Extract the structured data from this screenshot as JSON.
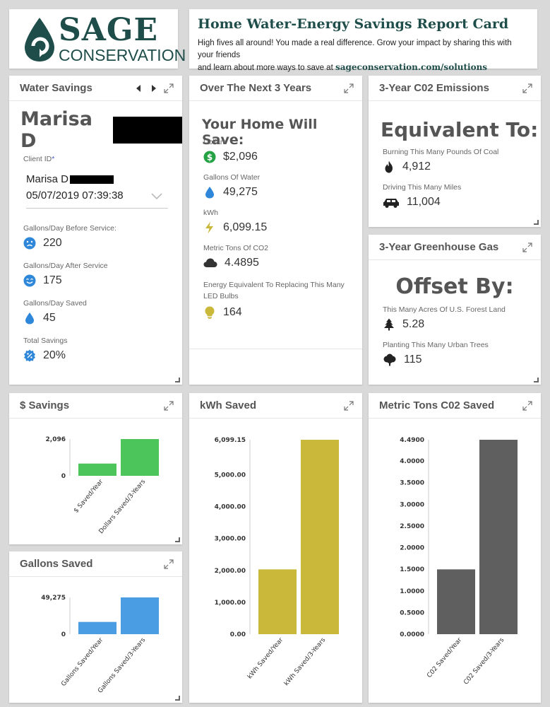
{
  "header": {
    "logo_main": "SAGE",
    "logo_sub": "CONSERVATION",
    "title": "Home Water-Energy Savings Report Card",
    "subtitle_line1": "High fives all around! You made a real difference. Grow your impact by sharing this with your friends",
    "subtitle_line2": "and learn about more ways to save at",
    "subtitle_link": "sageconservation.com/solutions"
  },
  "water_savings": {
    "title": "Water Savings",
    "client_name": "Marisa D",
    "client_id_label": "Client ID",
    "client_id_required": "*",
    "select_name": "Marisa D",
    "select_datetime": "05/07/2019 07:39:38",
    "stats": [
      {
        "label": "Gallons/Day Before Service:",
        "value": "220",
        "icon": "sad-face-icon"
      },
      {
        "label": "Gallons/Day After Service",
        "value": "175",
        "icon": "happy-face-icon"
      },
      {
        "label": "Gallons/Day Saved",
        "value": "45",
        "icon": "water-drop-icon"
      },
      {
        "label": "Total Savings",
        "value": "20%",
        "icon": "percent-badge-icon"
      }
    ]
  },
  "next3": {
    "title": "Over The Next 3 Years",
    "heading": "Your Home Will Save:",
    "stats": [
      {
        "label": "Dollars",
        "value": "$2,096",
        "icon": "dollar-icon"
      },
      {
        "label": "Gallons Of Water",
        "value": "49,275",
        "icon": "water-drop-icon"
      },
      {
        "label": "kWh",
        "value": "6,099.15",
        "icon": "lightning-icon"
      },
      {
        "label": "Metric Tons Of CO2",
        "value": "4.4895",
        "icon": "cloud-icon"
      },
      {
        "label": "Energy Equivalent To Replacing This Many LED Bulbs",
        "value": "164",
        "icon": "lightbulb-icon"
      }
    ]
  },
  "emissions": {
    "title": "3-Year C02 Emissions",
    "heading": "Equivalent To:",
    "stats": [
      {
        "label": "Burning This Many Pounds Of Coal",
        "value": "4,912",
        "icon": "flame-icon"
      },
      {
        "label": "Driving This Many Miles",
        "value": "11,004",
        "icon": "car-icon"
      }
    ]
  },
  "greenhouse": {
    "title": "3-Year Greenhouse Gas",
    "heading": "Offset By:",
    "stats": [
      {
        "label": "This Many Acres Of U.S. Forest Land",
        "value": "5.28",
        "icon": "pine-tree-icon"
      },
      {
        "label": "Planting This Many Urban Trees",
        "value": "115",
        "icon": "tree-icon"
      }
    ]
  },
  "colors": {
    "green": "#4cc55a",
    "blue": "#4a9de3",
    "yellow": "#c9b83a",
    "gray": "#5f5f5f",
    "brand": "#1f4e4a",
    "icon_blue": "#2f87d9"
  },
  "chart_data": [
    {
      "name": "dollars",
      "type": "bar",
      "title": "$ Savings",
      "categories": [
        "$ Saved/Year",
        "Dollars Saved/3-Years"
      ],
      "values": [
        699,
        2096
      ],
      "ylim": [
        0,
        2096
      ],
      "yticks": [
        "0",
        "2,096"
      ],
      "color": "#4cc55a"
    },
    {
      "name": "gallons",
      "type": "bar",
      "title": "Gallons Saved",
      "categories": [
        "Gallons Saved/Year",
        "Gallons Saved/3-Years"
      ],
      "values": [
        16425,
        49275
      ],
      "ylim": [
        0,
        49275
      ],
      "yticks": [
        "0",
        "49,275"
      ],
      "color": "#4a9de3"
    },
    {
      "name": "kwh",
      "type": "bar",
      "title": "kWh Saved",
      "categories": [
        "kWh Saved/Year",
        "kWh Saved/3-Years"
      ],
      "values": [
        2033.05,
        6099.15
      ],
      "ylim": [
        0,
        6099.15
      ],
      "yticks": [
        "0.00",
        "1,000.00",
        "2,000.00",
        "3,000.00",
        "4,000.00",
        "5,000.00",
        "6,099.15"
      ],
      "ytick_values": [
        0,
        1000,
        2000,
        3000,
        4000,
        5000,
        6099.15
      ],
      "color": "#c9b83a"
    },
    {
      "name": "co2",
      "type": "bar",
      "title": "Metric Tons C02 Saved",
      "categories": [
        "C02 Saved/Year",
        "C02 Saved/3-Years"
      ],
      "values": [
        1.4965,
        4.49
      ],
      "ylim": [
        0,
        4.49
      ],
      "yticks": [
        "0.0000",
        "0.5000",
        "1.0000",
        "1.5000",
        "2.0000",
        "2.5000",
        "3.0000",
        "3.5000",
        "4.0000",
        "4.4900"
      ],
      "ytick_values": [
        0,
        0.5,
        1,
        1.5,
        2,
        2.5,
        3,
        3.5,
        4,
        4.49
      ],
      "color": "#5f5f5f"
    }
  ]
}
